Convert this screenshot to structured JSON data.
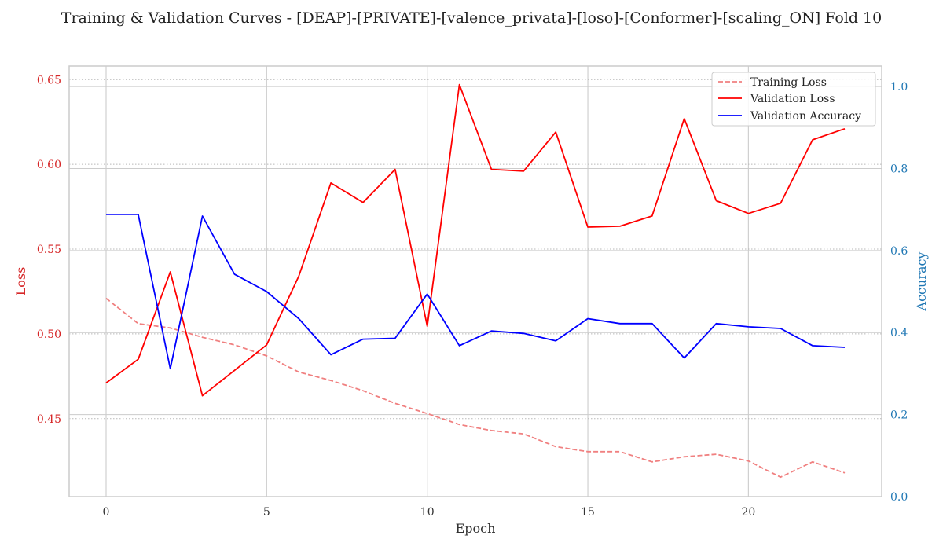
{
  "chart_data": {
    "type": "line",
    "title": "Training & Validation Curves - [DEAP]-[PRIVATE]-[valence_privata]-[loso]-[Conformer]-[scaling_ON] Fold 10",
    "xlabel": "Epoch",
    "ylabel_left": "Loss",
    "ylabel_right": "Accuracy",
    "x": [
      0,
      1,
      2,
      3,
      4,
      5,
      6,
      7,
      8,
      9,
      10,
      11,
      12,
      13,
      14,
      15,
      16,
      17,
      18,
      19,
      20,
      21,
      22,
      23
    ],
    "xlim": [
      -1.15,
      24.15
    ],
    "xticks": [
      0,
      5,
      10,
      15,
      20
    ],
    "ylim_left": [
      0.404,
      0.658
    ],
    "yticks_left": [
      "0.45",
      "0.50",
      "0.55",
      "0.60",
      "0.65"
    ],
    "ylim_right": [
      0.0,
      1.05
    ],
    "yticks_right": [
      "0.0",
      "0.2",
      "0.4",
      "0.6",
      "0.8",
      "1.0"
    ],
    "grid": true,
    "legend_position": "top-right",
    "series": [
      {
        "name": "Training Loss",
        "axis": "left",
        "color": "#f08080",
        "style": "dashed",
        "values": [
          0.521,
          0.506,
          0.5035,
          0.498,
          0.4935,
          0.487,
          0.4775,
          0.4725,
          0.4665,
          0.459,
          0.453,
          0.4465,
          0.443,
          0.441,
          0.4335,
          0.4305,
          0.4305,
          0.4245,
          0.4275,
          0.429,
          0.425,
          0.4155,
          0.4245,
          0.418
        ]
      },
      {
        "name": "Validation Loss",
        "axis": "left",
        "color": "#ff0000",
        "style": "solid",
        "values": [
          0.471,
          0.485,
          0.5365,
          0.4635,
          0.4785,
          0.4935,
          0.534,
          0.589,
          0.5775,
          0.597,
          0.5045,
          0.647,
          0.597,
          0.596,
          0.619,
          0.563,
          0.5635,
          0.5695,
          0.627,
          0.5785,
          0.571,
          0.577,
          0.6145,
          0.621
        ]
      },
      {
        "name": "Validation Accuracy",
        "axis": "right",
        "color": "#0000ff",
        "style": "solid",
        "values": [
          0.688,
          0.688,
          0.312,
          0.684,
          0.542,
          0.5,
          0.434,
          0.346,
          0.384,
          0.386,
          0.494,
          0.368,
          0.404,
          0.398,
          0.38,
          0.434,
          0.422,
          0.422,
          0.338,
          0.422,
          0.414,
          0.41,
          0.368,
          0.364
        ]
      }
    ]
  }
}
